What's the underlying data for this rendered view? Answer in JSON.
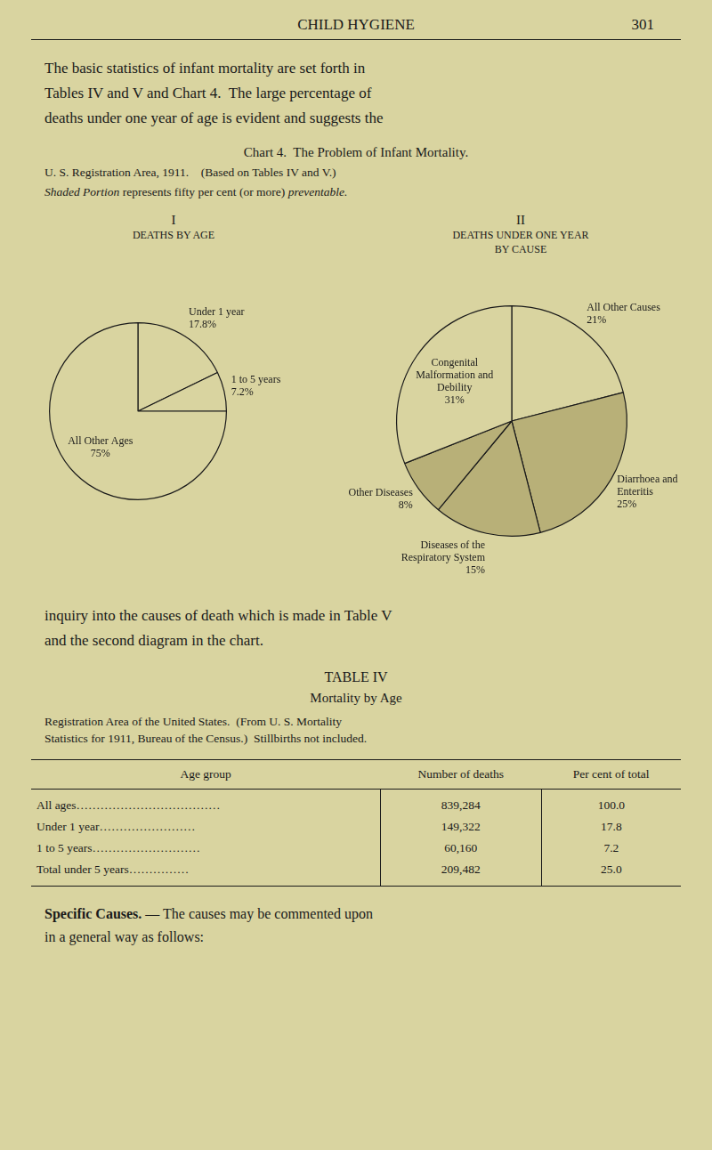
{
  "page": {
    "background": "#d9d4a0",
    "text_color": "#1a1a1a",
    "header": [
      "CHILD HYGIENE",
      "301"
    ],
    "intro": [
      "The basic statistics of infant mortality are set forth in",
      "Tables IV and V and Chart 4.  The large percentage of",
      "deaths under one year of age is evident and suggests the"
    ],
    "chart_heading": [
      "Chart 4.  The Problem of Infant Mortality.",
      "U. S. Registration Area, 1911.    (Based on Tables IV and V.)"
    ],
    "shaded_note": [
      "Shaded Portion",
      " represents fifty per cent (or more) ",
      "preventable."
    ],
    "continuation": [
      "inquiry into the causes of death which is made in Table V",
      "and the second diagram in the chart."
    ],
    "table": {
      "title": "TABLE IV",
      "subtitle": "Mortality by Age",
      "caption": [
        "Registration Area of the United States.  (From U. S. Mortality",
        "Statistics for 1911, Bureau of the Census.)  Stillbirths not included."
      ],
      "headers": [
        "Age group",
        "Number of deaths",
        "Per cent of total"
      ],
      "rows": [
        [
          "All ages………………………………",
          "839,284",
          "100.0"
        ],
        [
          "Under 1 year……………………",
          "149,322",
          "17.8"
        ],
        [
          "1 to 5 years………………………",
          "60,160",
          "7.2"
        ],
        [
          "Total under 5 years……………",
          "209,482",
          "25.0"
        ]
      ]
    },
    "closing": {
      "bold": "Specific Causes.",
      "rest": " — The causes may be commented upon",
      "line2": "in a general way as follows:"
    }
  },
  "chart_data": [
    {
      "type": "pie",
      "title": [
        "I",
        "DEATHS BY AGE"
      ],
      "categories": [
        "Under 1 year",
        "1 to 5 years",
        "All Other Ages"
      ],
      "values": [
        17.8,
        7.2,
        75.0
      ],
      "value_labels": [
        "17.8%",
        "7.2%",
        "75%"
      ],
      "colors": [
        "#d9d4a0",
        "#d9d4a0",
        "#d9d4a0"
      ],
      "data_labels": true
    },
    {
      "type": "pie",
      "title": [
        "II",
        "DEATHS UNDER ONE YEAR",
        "BY CAUSE"
      ],
      "categories": [
        "All Other Causes",
        "Diarrhoea and Enteritis",
        "Diseases of the Respiratory System",
        "Other Diseases",
        "Congenital Malformation and Debility"
      ],
      "values": [
        21.0,
        25.0,
        15.0,
        8.0,
        31.0
      ],
      "value_labels": [
        "21%",
        "25%",
        "15%",
        "8%",
        "31%"
      ],
      "colors": [
        "#d9d4a0",
        "#b8b078",
        "#b8b078",
        "#b8b078",
        "#d9d4a0"
      ],
      "data_labels": true
    }
  ]
}
